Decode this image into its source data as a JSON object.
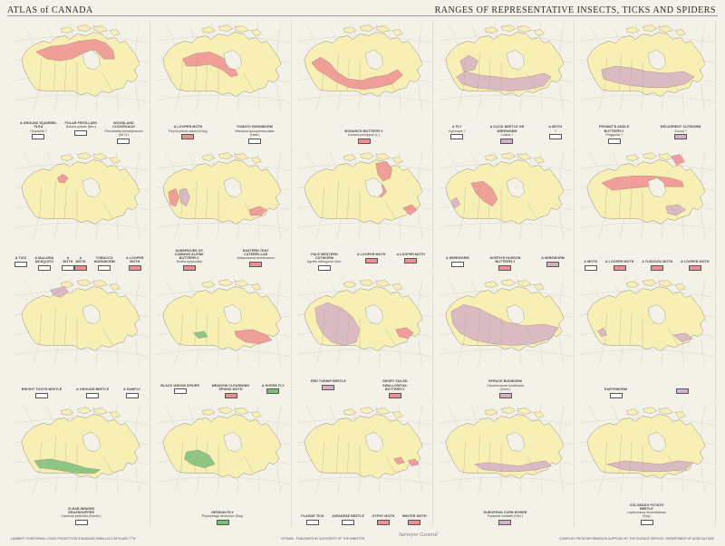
{
  "header": {
    "left": "ATLAS of CANADA",
    "right": "RANGES OF REPRESENTATIVE INSECTS, TICKS AND SPIDERS"
  },
  "colors": {
    "land": "#f7efb4",
    "pink": "#ef8f93",
    "purple": "#d5b1c6",
    "green": "#7bbf7a",
    "water": "#f4f1e8",
    "line": "#8e8e8e"
  },
  "panels": [
    {
      "region": "a",
      "labels": [
        {
          "name": "A GROUND SQUIRREL FLEA",
          "sci": "Oropsylla ?",
          "swatch": "none"
        },
        {
          "name": "POLAR FRITILLARY",
          "sci": "Boloria polaris (Bdv.)",
          "swatch": "none"
        },
        {
          "name": "WOODLAND COCKROACH",
          "sci": "Parcoblatta pennsylvanica (De G.)",
          "swatch": "none"
        }
      ]
    },
    {
      "region": "b",
      "labels": [
        {
          "name": "A LOOPER MOTH",
          "sci": "Psychophora sabini (Kirby)",
          "swatch": "pink"
        },
        {
          "name": "TOMATO HORNWORM",
          "sci": "Manduca quinquemaculata (Haw.)",
          "swatch": "none"
        }
      ]
    },
    {
      "region": "c",
      "labels": [
        {
          "name": "MONARCH BUTTERFLY",
          "sci": "Danaus plexippus (L.)",
          "swatch": "pink"
        }
      ]
    },
    {
      "region": "d",
      "labels": [
        {
          "name": "A FLY",
          "sci": "Gymnopa ?",
          "swatch": "none"
        },
        {
          "name": "A CLICK BEETLE OR WIREWORM",
          "sci": "Ludius ?",
          "swatch": "purple"
        },
        {
          "name": "A MOTH",
          "sci": "?",
          "swatch": "none"
        }
      ]
    },
    {
      "region": "e",
      "labels": [
        {
          "name": "FROMAT'S ANGLE BUTTERFLY",
          "sci": "Polygonia ?",
          "swatch": "none"
        },
        {
          "name": "RECURRENT CUTWORM",
          "sci": "Euxoa ?",
          "swatch": "purple"
        }
      ]
    },
    {
      "region": "f",
      "labels": [
        {
          "name": "A TICK",
          "sci": "",
          "swatch": "none"
        },
        {
          "name": "A MALARIA MOSQUITO",
          "sci": "",
          "swatch": "none"
        },
        {
          "name": "A MOTH",
          "sci": "",
          "swatch": "none"
        },
        {
          "name": "A MOTH",
          "sci": "",
          "swatch": "pink"
        },
        {
          "name": "TOBACCO HORNWORM",
          "sci": "",
          "swatch": "none"
        },
        {
          "name": "A LOOPER MOTH",
          "sci": "",
          "swatch": "pink"
        }
      ]
    },
    {
      "region": "g",
      "labels": [
        {
          "name": "SUBSPECIES OF COMMON ALPINE BUTTERFLY",
          "sci": "Erebia epipsodea",
          "swatch": "pink"
        },
        {
          "name": "EASTERN TENT CATERPILLAR",
          "sci": "Malacosoma americanum",
          "swatch": "pink"
        }
      ]
    },
    {
      "region": "h",
      "labels": [
        {
          "name": "PALE WESTERN CUTWORM",
          "sci": "Agrotis orthogonia Morr.",
          "swatch": "none"
        },
        {
          "name": "A LOOPER MOTH",
          "sci": "",
          "swatch": "pink"
        },
        {
          "name": "A LOOPER MOTH",
          "sci": "",
          "swatch": "pink"
        }
      ]
    },
    {
      "region": "i",
      "labels": [
        {
          "name": "A WIREWORM",
          "sci": "",
          "swatch": "none"
        },
        {
          "name": "NORTH'S HUDSON BUTTERFLY",
          "sci": "",
          "swatch": "pink"
        },
        {
          "name": "A WIREWORM",
          "sci": "",
          "swatch": "purple"
        }
      ]
    },
    {
      "region": "j",
      "labels": [
        {
          "name": "A MOTH",
          "sci": "",
          "swatch": "none"
        },
        {
          "name": "A LOOPER MOTH",
          "sci": "",
          "swatch": "pink"
        },
        {
          "name": "A TUSSOCK MOTH",
          "sci": "",
          "swatch": "pink"
        },
        {
          "name": "A LOOPER MOTH",
          "sci": "",
          "swatch": "pink"
        }
      ]
    },
    {
      "region": "k",
      "labels": [
        {
          "name": "BRIGHT TOOTH BEETLE",
          "sci": "",
          "swatch": "none"
        },
        {
          "name": "A GROUND BEETLE",
          "sci": "",
          "swatch": "none"
        },
        {
          "name": "A SAWFLY",
          "sci": "",
          "swatch": "none"
        }
      ]
    },
    {
      "region": "l",
      "labels": [
        {
          "name": "BLACK WIDOW SPIDER",
          "sci": "",
          "swatch": "none"
        },
        {
          "name": "MEADOW CLEARWING SPHINX MOTH",
          "sci": "",
          "swatch": "pink"
        },
        {
          "name": "A HORSE FLY",
          "sci": "",
          "swatch": "green"
        }
      ]
    },
    {
      "region": "m",
      "labels": [
        {
          "name": "RED TURNIP BEETLE",
          "sci": "",
          "swatch": "purple"
        },
        {
          "name": "SHORT-TAILED SWALLOWTAIL BUTTERFLY",
          "sci": "",
          "swatch": "pink"
        }
      ]
    },
    {
      "region": "n",
      "labels": [
        {
          "name": "SPRUCE BUDWORM",
          "sci": "Choristoneura fumiferana (Clem.)",
          "swatch": "purple"
        }
      ]
    },
    {
      "region": "o",
      "labels": [
        {
          "name": "EARTHWORM",
          "sci": "",
          "swatch": "none"
        },
        {
          "name": "",
          "sci": "",
          "swatch": "purple"
        }
      ]
    },
    {
      "region": "p",
      "labels": [
        {
          "name": "CLEAR-WINGED GRASSHOPPER",
          "sci": "Camnula pellucida (Scudd.)",
          "swatch": "none"
        }
      ]
    },
    {
      "region": "q",
      "labels": [
        {
          "name": "HESSIAN FLY",
          "sci": "Phytophaga destructor (Say)",
          "swatch": "green"
        }
      ]
    },
    {
      "region": "r",
      "labels": [
        {
          "name": "PLAGUE TICK",
          "sci": "",
          "swatch": "none"
        },
        {
          "name": "JAPANESE BEETLE",
          "sci": "",
          "swatch": "none"
        },
        {
          "name": "GYPSY MOTH",
          "sci": "",
          "swatch": "pink"
        },
        {
          "name": "WINTER MOTH",
          "sci": "",
          "swatch": "pink"
        }
      ]
    },
    {
      "region": "s",
      "labels": [
        {
          "name": "EUROPEAN CORN BORER",
          "sci": "Pyrausta nubilalis (Hbn.)",
          "swatch": "purple"
        }
      ]
    },
    {
      "region": "t",
      "labels": [
        {
          "name": "COLORADO POTATO BEETLE",
          "sci": "Leptinotarsa decemlineata (Say)",
          "swatch": "none"
        }
      ]
    }
  ],
  "footer": {
    "left": "LAMBERT CONFORMAL CONIC PROJECTION STANDARD PARALLELS 49°N AND 77°N",
    "center": "OTTAWA  ·  PUBLISHED BY AUTHORITY OF THE MINISTER",
    "signature": "Surveyor General",
    "right": "COMPILED FROM INFORMATION SUPPLIED BY THE SCIENCE SERVICE, DEPARTMENT OF AGRICULTURE"
  }
}
